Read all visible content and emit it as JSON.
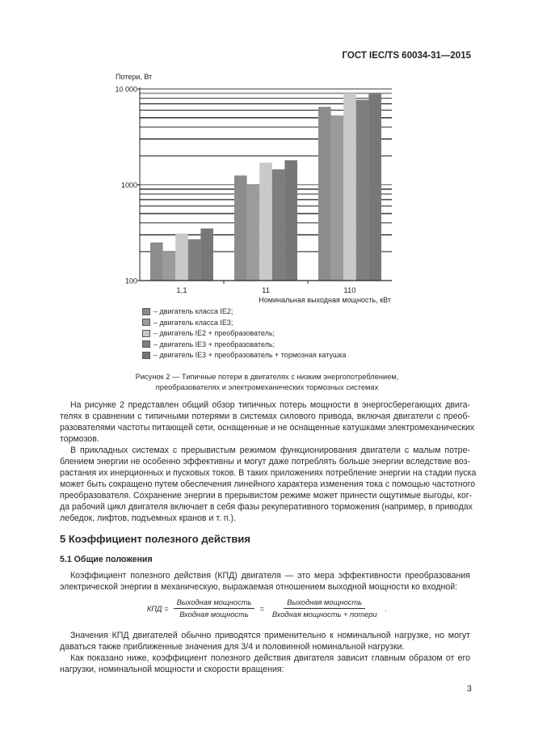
{
  "header": {
    "doc_code": "ГОСТ IEC/TS 60034-31—2015"
  },
  "chart_data": {
    "type": "bar",
    "ylabel": "Потери, Вт",
    "xlabel": "Номинальная выходная мощность, кВт",
    "y_scale": "log",
    "ylim": [
      100,
      10000
    ],
    "y_ticks": [
      "100",
      "1000",
      "10 000"
    ],
    "categories": [
      "1,1",
      "11",
      "110"
    ],
    "grid": true,
    "legend_placement": "bottom",
    "series": [
      {
        "name": "– двигатель класса IE2;",
        "values": [
          250,
          1250,
          6500
        ],
        "color": "#8c8c8c"
      },
      {
        "name": "– двигатель класса IE3;",
        "values": [
          200,
          1000,
          5300
        ],
        "color": "#9b9b9b"
      },
      {
        "name": "– двигатель IE2 + преобразователь;",
        "values": [
          310,
          1700,
          9000
        ],
        "color": "#c9c9c9"
      },
      {
        "name": "– двигатель IE3 + преобразователь;",
        "values": [
          270,
          1450,
          7700
        ],
        "color": "#7e7e7e"
      },
      {
        "name": "– двигатель IE3 + преобразователь + тормозная катушка",
        "values": [
          350,
          1800,
          9000
        ],
        "color": "#777777"
      }
    ]
  },
  "caption": [
    "Рисунок 2 — Типичные потери в двигателях с низким энергопотреблением,",
    "преобразователях и электромеханических тормозных системах"
  ],
  "para1": [
    "На рисунке 2 представлен общий обзор типичных потерь мощности в энергосберегающих двига-",
    "телях в сравнении с типичными потерями в системах силового привода, включая двигатели с преоб-",
    "разователями частоты питающей сети, оснащенные и не оснащенные катушками электромеханических",
    "тормозов."
  ],
  "para2": [
    "В прикладных системах с прерывистым режимом функционирования двигатели с малым потре-",
    "блением энергии не особенно эффективны и могут даже потреблять больше энергии вследствие воз-",
    "растания их инерционных и пусковых токов. В таких приложениях потребление энергии на стадии пуска",
    "может быть сокращено путем обеспечения линейного характера изменения тока с помощью частотного",
    "преобразователя. Сохранение энергии в прерывистом режиме может принести ощутимые выгоды, ког-",
    "да рабочий цикл двигателя включает в себя фазы рекуперативного торможения (например, в приводах",
    "лебедок, лифтов, подъемных кранов и т. п.)."
  ],
  "section": {
    "title": "5 Коэффициент полезного действия",
    "subtitle": "5.1 Общие положения"
  },
  "para3": [
    "Коэффициент полезного действия (КПД) двигателя — это мера эффективности преобразования",
    "электрической энергии в механическую, выражаемая отношением выходной мощности ко входной:"
  ],
  "formula": {
    "lhs": "КПД =",
    "num1": "Выходная мощность",
    "den1": "Входная мощность",
    "eq": "=",
    "num2": "Выходная мощность",
    "den2": "Входная мощность + потери",
    "end": "."
  },
  "para4": [
    "Значения КПД двигателей обычно приводятся применительно к номинальной нагрузке, но могут",
    "даваться также приближенные значения для 3/4 и половинной номинальной нагрузки."
  ],
  "para5": [
    "Как показано ниже, коэффициент полезного действия двигателя зависит главным образом от его",
    "нагрузки, номинальной мощности и скорости вращения:"
  ],
  "page_number": "3"
}
